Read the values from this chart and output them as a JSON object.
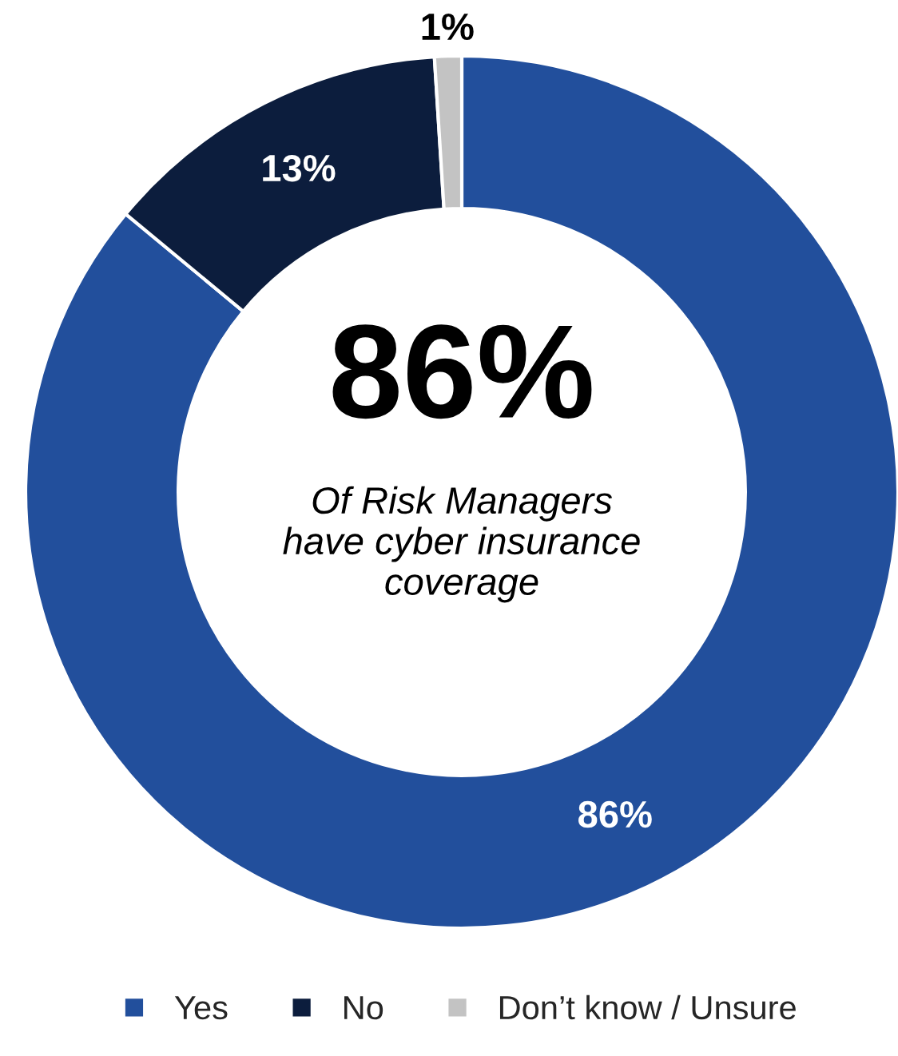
{
  "chart_data": {
    "type": "donut",
    "categories": [
      "Yes",
      "No",
      "Don’t know / Unsure"
    ],
    "values": [
      86,
      13,
      1
    ],
    "colors": [
      "#224f9c",
      "#0c1d3d",
      "#c3c3c3"
    ],
    "value_labels": [
      "86%",
      "13%",
      "1%"
    ],
    "annotations": [
      "86%",
      "Of Risk Managers\nhave cyber insurance\ncoverage"
    ],
    "legend": "bottom"
  }
}
